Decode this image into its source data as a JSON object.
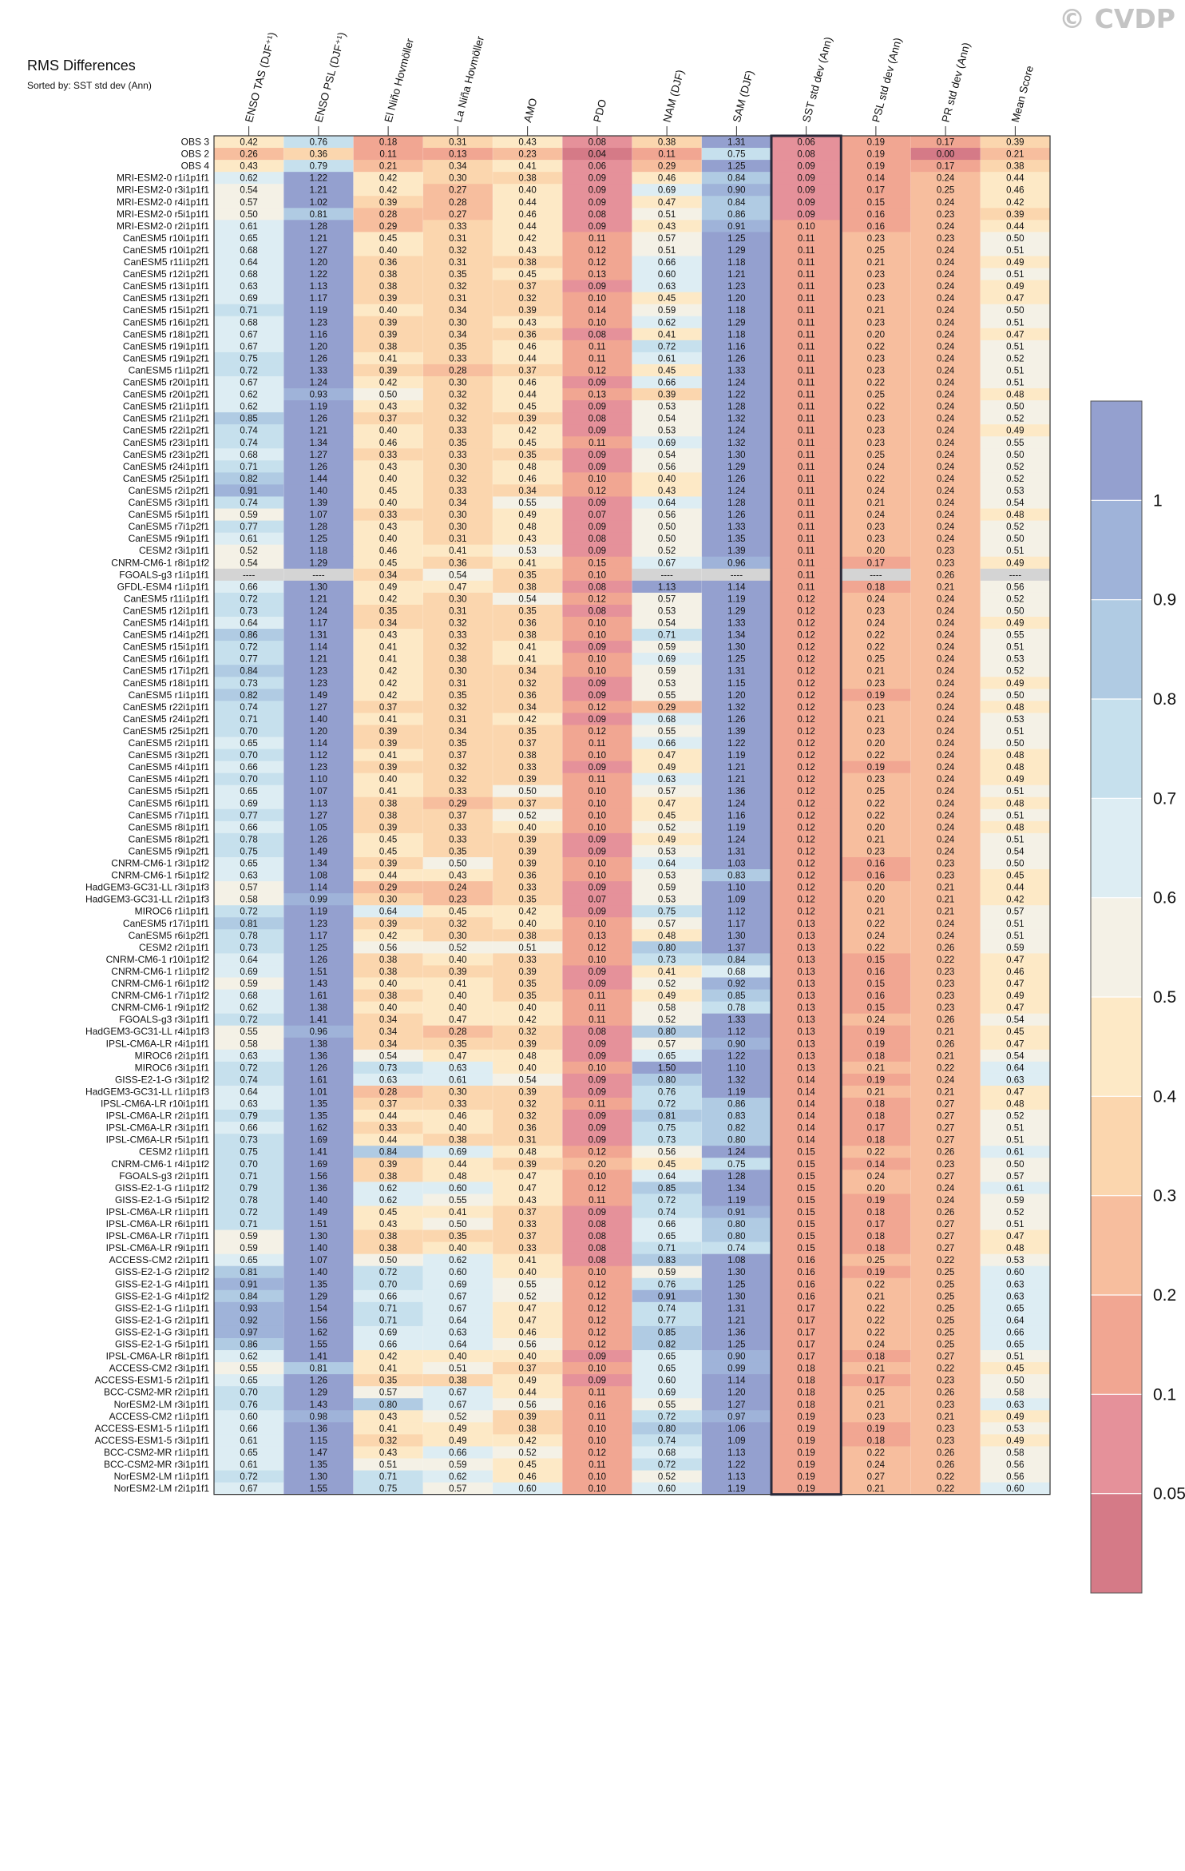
{
  "watermark": "© CVDP",
  "title": "RMS Differences",
  "subtitle": "Sorted by: SST std dev (Ann)",
  "chart_data": {
    "type": "heatmap",
    "columns": [
      "ENSO TAS (DJF⁺¹)",
      "ENSO PSL (DJF⁺¹)",
      "El Niño Hovmöller",
      "La Niña Hovmöller",
      "AMO",
      "PDO",
      "NAM (DJF)",
      "SAM (DJF)",
      "SST std dev (Ann)",
      "PSL std dev (Ann)",
      "PR std dev (Ann)",
      "Mean Score"
    ],
    "sorted_column": "SST std dev (Ann)",
    "missing_label": "----",
    "colorbar_ticks": [
      "1",
      "0.9",
      "0.8",
      "0.7",
      "0.6",
      "0.5",
      "0.4",
      "0.3",
      "0.2",
      "0.1",
      "0.05"
    ],
    "rows": [
      "OBS 3|0.42|0.76|0.18|0.31|0.43|0.08|0.38|1.31|0.06|0.19|0.17|0.39",
      "OBS 2|0.26|0.36|0.11|0.13|0.23|0.04|0.11|0.75|0.08|0.19|0.00|0.21",
      "OBS 4|0.43|0.79|0.21|0.34|0.41|0.06|0.29|1.25|0.09|0.19|0.17|0.38",
      "MRI-ESM2-0 r1i1p1f1|0.62|1.22|0.42|0.30|0.38|0.09|0.46|0.84|0.09|0.14|0.24|0.44",
      "MRI-ESM2-0 r3i1p1f1|0.54|1.21|0.42|0.27|0.40|0.09|0.69|0.90|0.09|0.17|0.25|0.46",
      "MRI-ESM2-0 r4i1p1f1|0.57|1.02|0.39|0.28|0.44|0.09|0.47|0.84|0.09|0.15|0.24|0.42",
      "MRI-ESM2-0 r5i1p1f1|0.50|0.81|0.28|0.27|0.46|0.08|0.51|0.86|0.09|0.16|0.23|0.39",
      "MRI-ESM2-0 r2i1p1f1|0.61|1.28|0.29|0.33|0.44|0.09|0.43|0.91|0.10|0.16|0.24|0.44",
      "CanESM5 r10i1p1f1|0.65|1.21|0.45|0.31|0.42|0.11|0.57|1.25|0.11|0.23|0.23|0.50",
      "CanESM5 r10i1p2f1|0.68|1.27|0.40|0.32|0.43|0.12|0.51|1.29|0.11|0.25|0.24|0.51",
      "CanESM5 r11i1p2f1|0.64|1.20|0.36|0.31|0.38|0.12|0.66|1.18|0.11|0.21|0.24|0.49",
      "CanESM5 r12i1p2f1|0.68|1.22|0.38|0.35|0.45|0.13|0.60|1.21|0.11|0.23|0.24|0.51",
      "CanESM5 r13i1p1f1|0.63|1.13|0.38|0.32|0.37|0.09|0.63|1.23|0.11|0.23|0.24|0.49",
      "CanESM5 r13i1p2f1|0.69|1.17|0.39|0.31|0.32|0.10|0.45|1.20|0.11|0.23|0.24|0.47",
      "CanESM5 r15i1p2f1|0.71|1.19|0.40|0.34|0.39|0.14|0.59|1.18|0.11|0.21|0.24|0.50",
      "CanESM5 r16i1p2f1|0.68|1.23|0.39|0.30|0.43|0.10|0.62|1.29|0.11|0.23|0.24|0.51",
      "CanESM5 r18i1p2f1|0.67|1.16|0.39|0.34|0.36|0.08|0.41|1.18|0.11|0.20|0.24|0.47",
      "CanESM5 r19i1p1f1|0.67|1.20|0.38|0.35|0.46|0.11|0.72|1.16|0.11|0.22|0.24|0.51",
      "CanESM5 r19i1p2f1|0.75|1.26|0.41|0.33|0.44|0.11|0.61|1.26|0.11|0.23|0.24|0.52",
      "CanESM5 r1i1p2f1|0.72|1.33|0.39|0.28|0.37|0.12|0.45|1.33|0.11|0.23|0.24|0.51",
      "CanESM5 r20i1p1f1|0.67|1.24|0.42|0.30|0.46|0.09|0.66|1.24|0.11|0.22|0.24|0.51",
      "CanESM5 r20i1p2f1|0.62|0.93|0.50|0.32|0.44|0.13|0.39|1.22|0.11|0.25|0.24|0.48",
      "CanESM5 r21i1p1f1|0.62|1.19|0.43|0.32|0.45|0.09|0.53|1.28|0.11|0.22|0.24|0.50",
      "CanESM5 r21i1p2f1|0.85|1.26|0.37|0.32|0.39|0.08|0.54|1.32|0.11|0.23|0.24|0.52",
      "CanESM5 r22i1p2f1|0.74|1.21|0.40|0.33|0.42|0.09|0.53|1.24|0.11|0.23|0.24|0.49",
      "CanESM5 r23i1p1f1|0.74|1.34|0.46|0.35|0.45|0.11|0.69|1.32|0.11|0.23|0.24|0.55",
      "CanESM5 r23i1p2f1|0.68|1.27|0.33|0.33|0.35|0.09|0.54|1.30|0.11|0.25|0.24|0.50",
      "CanESM5 r24i1p1f1|0.71|1.26|0.43|0.30|0.48|0.09|0.56|1.29|0.11|0.24|0.24|0.52",
      "CanESM5 r25i1p1f1|0.82|1.44|0.40|0.32|0.46|0.10|0.40|1.26|0.11|0.22|0.24|0.52",
      "CanESM5 r2i1p2f1|0.91|1.40|0.45|0.33|0.34|0.12|0.43|1.24|0.11|0.24|0.24|0.53",
      "CanESM5 r3i1p1f1|0.74|1.39|0.40|0.34|0.55|0.09|0.64|1.28|0.11|0.21|0.24|0.54",
      "CanESM5 r5i1p1f1|0.59|1.07|0.33|0.30|0.49|0.07|0.56|1.26|0.11|0.24|0.24|0.48",
      "CanESM5 r7i1p2f1|0.77|1.28|0.43|0.30|0.48|0.09|0.50|1.33|0.11|0.23|0.24|0.52",
      "CanESM5 r9i1p1f1|0.61|1.25|0.40|0.31|0.43|0.08|0.50|1.35|0.11|0.23|0.24|0.50",
      "CESM2 r3i1p1f1|0.52|1.18|0.46|0.41|0.53|0.09|0.52|1.39|0.11|0.20|0.23|0.51",
      "CNRM-CM6-1 r8i1p1f2|0.54|1.29|0.45|0.36|0.41|0.15|0.67|0.96|0.11|0.17|0.23|0.49",
      "FGOALS-g3 r1i1p1f1|----|----|0.34|0.54|0.35|0.10|----|----|0.11|----|0.26|----",
      "GFDL-ESM4 r1i1p1f1|0.66|1.30|0.49|0.47|0.38|0.08|1.13|1.14|0.11|0.18|0.21|0.56",
      "CanESM5 r11i1p1f1|0.72|1.21|0.42|0.30|0.54|0.12|0.57|1.19|0.12|0.24|0.24|0.52",
      "CanESM5 r12i1p1f1|0.73|1.24|0.35|0.31|0.35|0.08|0.53|1.29|0.12|0.23|0.24|0.50",
      "CanESM5 r14i1p1f1|0.64|1.17|0.34|0.32|0.36|0.10|0.54|1.33|0.12|0.24|0.24|0.49",
      "CanESM5 r14i1p2f1|0.86|1.31|0.43|0.33|0.38|0.10|0.71|1.34|0.12|0.22|0.24|0.55",
      "CanESM5 r15i1p1f1|0.72|1.14|0.41|0.32|0.41|0.09|0.59|1.30|0.12|0.22|0.24|0.51",
      "CanESM5 r16i1p1f1|0.77|1.21|0.41|0.38|0.41|0.10|0.69|1.25|0.12|0.25|0.24|0.53",
      "CanESM5 r17i1p2f1|0.84|1.23|0.42|0.30|0.34|0.10|0.59|1.31|0.12|0.21|0.24|0.52",
      "CanESM5 r18i1p1f1|0.73|1.23|0.42|0.31|0.32|0.09|0.53|1.15|0.12|0.23|0.24|0.49",
      "CanESM5 r1i1p1f1|0.82|1.49|0.42|0.35|0.36|0.09|0.55|1.20|0.12|0.19|0.24|0.50",
      "CanESM5 r22i1p1f1|0.74|1.27|0.37|0.32|0.34|0.12|0.29|1.32|0.12|0.23|0.24|0.48",
      "CanESM5 r24i1p2f1|0.71|1.40|0.41|0.31|0.42|0.09|0.68|1.26|0.12|0.21|0.24|0.53",
      "CanESM5 r25i1p2f1|0.70|1.20|0.39|0.34|0.35|0.12|0.55|1.39|0.12|0.23|0.24|0.51",
      "CanESM5 r2i1p1f1|0.65|1.14|0.39|0.35|0.37|0.11|0.66|1.22|0.12|0.20|0.24|0.50",
      "CanESM5 r3i1p2f1|0.70|1.12|0.41|0.37|0.38|0.10|0.47|1.19|0.12|0.22|0.24|0.48",
      "CanESM5 r4i1p1f1|0.66|1.23|0.39|0.32|0.33|0.09|0.49|1.21|0.12|0.19|0.24|0.48",
      "CanESM5 r4i1p2f1|0.70|1.10|0.40|0.32|0.39|0.11|0.63|1.21|0.12|0.23|0.24|0.49",
      "CanESM5 r5i1p2f1|0.65|1.07|0.41|0.33|0.50|0.10|0.57|1.36|0.12|0.25|0.24|0.51",
      "CanESM5 r6i1p1f1|0.69|1.13|0.38|0.29|0.37|0.10|0.47|1.24|0.12|0.22|0.24|0.48",
      "CanESM5 r7i1p1f1|0.77|1.27|0.38|0.37|0.52|0.10|0.45|1.16|0.12|0.22|0.24|0.51",
      "CanESM5 r8i1p1f1|0.66|1.05|0.39|0.33|0.40|0.10|0.52|1.19|0.12|0.20|0.24|0.48",
      "CanESM5 r8i1p2f1|0.78|1.26|0.45|0.33|0.39|0.09|0.49|1.24|0.12|0.21|0.24|0.51",
      "CanESM5 r9i1p2f1|0.75|1.49|0.45|0.35|0.39|0.09|0.53|1.31|0.12|0.23|0.24|0.54",
      "CNRM-CM6-1 r3i1p1f2|0.65|1.34|0.39|0.50|0.39|0.10|0.64|1.03|0.12|0.16|0.23|0.50",
      "CNRM-CM6-1 r5i1p1f2|0.63|1.08|0.44|0.43|0.36|0.10|0.53|0.83|0.12|0.16|0.23|0.45",
      "HadGEM3-GC31-LL r3i1p1f3|0.57|1.14|0.29|0.24|0.33|0.09|0.59|1.10|0.12|0.20|0.21|0.44",
      "HadGEM3-GC31-LL r2i1p1f3|0.58|0.99|0.30|0.23|0.35|0.07|0.53|1.09|0.12|0.20|0.21|0.42",
      "MIROC6 r1i1p1f1|0.72|1.19|0.64|0.45|0.42|0.09|0.75|1.12|0.12|0.21|0.21|0.57",
      "CanESM5 r17i1p1f1|0.81|1.23|0.39|0.32|0.40|0.10|0.57|1.17|0.13|0.22|0.24|0.51",
      "CanESM5 r6i1p2f1|0.78|1.17|0.42|0.30|0.38|0.13|0.48|1.30|0.13|0.24|0.24|0.51",
      "CESM2 r2i1p1f1|0.73|1.25|0.56|0.52|0.51|0.12|0.80|1.37|0.13|0.22|0.26|0.59",
      "CNRM-CM6-1 r10i1p1f2|0.64|1.26|0.38|0.40|0.33|0.10|0.73|0.84|0.13|0.15|0.22|0.47",
      "CNRM-CM6-1 r1i1p1f2|0.69|1.51|0.38|0.39|0.39|0.09|0.41|0.68|0.13|0.16|0.23|0.46",
      "CNRM-CM6-1 r6i1p1f2|0.59|1.43|0.40|0.41|0.35|0.09|0.52|0.92|0.13|0.15|0.23|0.47",
      "CNRM-CM6-1 r7i1p1f2|0.68|1.61|0.38|0.40|0.35|0.11|0.49|0.85|0.13|0.16|0.23|0.49",
      "CNRM-CM6-1 r9i1p1f2|0.62|1.38|0.40|0.40|0.40|0.11|0.58|0.78|0.13|0.15|0.23|0.47",
      "FGOALS-g3 r3i1p1f1|0.72|1.41|0.34|0.47|0.42|0.11|0.52|1.33|0.13|0.24|0.26|0.54",
      "HadGEM3-GC31-LL r4i1p1f3|0.55|0.96|0.34|0.28|0.32|0.08|0.80|1.12|0.13|0.19|0.21|0.45",
      "IPSL-CM6A-LR r4i1p1f1|0.58|1.38|0.34|0.35|0.39|0.09|0.57|0.90|0.13|0.19|0.26|0.47",
      "MIROC6 r2i1p1f1|0.63|1.36|0.54|0.47|0.48|0.09|0.65|1.22|0.13|0.18|0.21|0.54",
      "MIROC6 r3i1p1f1|0.72|1.26|0.73|0.63|0.40|0.10|1.50|1.10|0.13|0.21|0.22|0.64",
      "GISS-E2-1-G r3i1p1f2|0.74|1.61|0.63|0.61|0.54|0.09|0.80|1.32|0.14|0.19|0.24|0.63",
      "HadGEM3-GC31-LL r1i1p1f3|0.64|1.01|0.28|0.30|0.39|0.09|0.76|1.19|0.14|0.21|0.21|0.47",
      "IPSL-CM6A-LR r10i1p1f1|0.63|1.35|0.37|0.33|0.32|0.11|0.72|0.86|0.14|0.18|0.27|0.48",
      "IPSL-CM6A-LR r2i1p1f1|0.79|1.35|0.44|0.46|0.32|0.09|0.81|0.83|0.14|0.18|0.27|0.52",
      "IPSL-CM6A-LR r3i1p1f1|0.66|1.62|0.33|0.40|0.36|0.09|0.75|0.82|0.14|0.17|0.27|0.51",
      "IPSL-CM6A-LR r5i1p1f1|0.73|1.69|0.44|0.38|0.31|0.09|0.73|0.80|0.14|0.18|0.27|0.51",
      "CESM2 r1i1p1f1|0.75|1.41|0.84|0.69|0.48|0.12|0.56|1.24|0.15|0.22|0.26|0.61",
      "CNRM-CM6-1 r4i1p1f2|0.70|1.69|0.39|0.44|0.39|0.20|0.45|0.75|0.15|0.14|0.23|0.50",
      "FGOALS-g3 r2i1p1f1|0.71|1.56|0.38|0.48|0.47|0.10|0.64|1.28|0.15|0.24|0.27|0.57",
      "GISS-E2-1-G r1i1p1f2|0.79|1.36|0.62|0.60|0.47|0.12|0.85|1.34|0.15|0.20|0.24|0.61",
      "GISS-E2-1-G r5i1p1f2|0.78|1.40|0.62|0.55|0.43|0.11|0.72|1.19|0.15|0.19|0.24|0.59",
      "IPSL-CM6A-LR r1i1p1f1|0.72|1.49|0.45|0.41|0.37|0.09|0.74|0.91|0.15|0.18|0.26|0.52",
      "IPSL-CM6A-LR r6i1p1f1|0.71|1.51|0.43|0.50|0.33|0.08|0.66|0.80|0.15|0.17|0.27|0.51",
      "IPSL-CM6A-LR r7i1p1f1|0.59|1.30|0.38|0.35|0.37|0.08|0.65|0.80|0.15|0.18|0.27|0.47",
      "IPSL-CM6A-LR r9i1p1f1|0.59|1.40|0.38|0.40|0.33|0.08|0.71|0.74|0.15|0.18|0.27|0.48",
      "ACCESS-CM2 r2i1p1f1|0.65|1.07|0.50|0.62|0.41|0.08|0.83|1.08|0.16|0.25|0.22|0.53",
      "GISS-E2-1-G r2i1p1f2|0.81|1.40|0.72|0.60|0.40|0.10|0.59|1.30|0.16|0.19|0.25|0.60",
      "GISS-E2-1-G r4i1p1f1|0.91|1.35|0.70|0.69|0.55|0.12|0.76|1.25|0.16|0.22|0.25|0.63",
      "GISS-E2-1-G r4i1p1f2|0.84|1.29|0.66|0.67|0.52|0.12|0.91|1.30|0.16|0.21|0.25|0.63",
      "GISS-E2-1-G r1i1p1f1|0.93|1.54|0.71|0.67|0.47|0.12|0.74|1.31|0.17|0.22|0.25|0.65",
      "GISS-E2-1-G r2i1p1f1|0.92|1.56|0.71|0.64|0.47|0.12|0.77|1.21|0.17|0.22|0.25|0.64",
      "GISS-E2-1-G r3i1p1f1|0.97|1.62|0.69|0.63|0.46|0.12|0.85|1.36|0.17|0.22|0.25|0.66",
      "GISS-E2-1-G r5i1p1f1|0.86|1.55|0.66|0.64|0.56|0.12|0.82|1.25|0.17|0.24|0.25|0.65",
      "IPSL-CM6A-LR r8i1p1f1|0.62|1.41|0.42|0.40|0.40|0.09|0.65|0.90|0.17|0.18|0.27|0.51",
      "ACCESS-CM2 r3i1p1f1|0.55|0.81|0.41|0.51|0.37|0.10|0.65|0.99|0.18|0.21|0.22|0.45",
      "ACCESS-ESM1-5 r2i1p1f1|0.65|1.26|0.35|0.38|0.49|0.09|0.60|1.14|0.18|0.17|0.23|0.50",
      "BCC-CSM2-MR r2i1p1f1|0.70|1.29|0.57|0.67|0.44|0.11|0.69|1.20|0.18|0.25|0.26|0.58",
      "NorESM2-LM r3i1p1f1|0.76|1.43|0.80|0.67|0.56|0.16|0.55|1.27|0.18|0.21|0.23|0.63",
      "ACCESS-CM2 r1i1p1f1|0.60|0.98|0.43|0.52|0.39|0.11|0.72|0.97|0.19|0.23|0.21|0.49",
      "ACCESS-ESM1-5 r1i1p1f1|0.66|1.36|0.41|0.49|0.38|0.10|0.80|1.06|0.19|0.19|0.23|0.53",
      "ACCESS-ESM1-5 r3i1p1f1|0.61|1.15|0.32|0.49|0.42|0.10|0.74|1.09|0.19|0.18|0.23|0.49",
      "BCC-CSM2-MR r1i1p1f1|0.65|1.47|0.43|0.66|0.52|0.12|0.68|1.13|0.19|0.22|0.26|0.58",
      "BCC-CSM2-MR r3i1p1f1|0.61|1.35|0.51|0.59|0.45|0.11|0.72|1.22|0.19|0.24|0.26|0.56",
      "NorESM2-LM r1i1p1f1|0.72|1.30|0.71|0.62|0.46|0.10|0.52|1.13|0.19|0.27|0.22|0.56",
      "NorESM2-LM r2i1p1f1|0.67|1.55|0.75|0.57|0.60|0.10|0.60|1.19|0.19|0.21|0.22|0.60"
    ]
  },
  "palette": {
    "bands": [
      "#d57a87",
      "#e5919a",
      "#f1a692",
      "#f7be9e",
      "#fbd6ae",
      "#fde9c6",
      "#f4f1e6",
      "#ddedf3",
      "#c6e0ed",
      "#b0cbe3",
      "#9fb3d9",
      "#94a0cf"
    ],
    "na_color": "#d4d4d4",
    "highlight_border": "#2a2a3a"
  }
}
